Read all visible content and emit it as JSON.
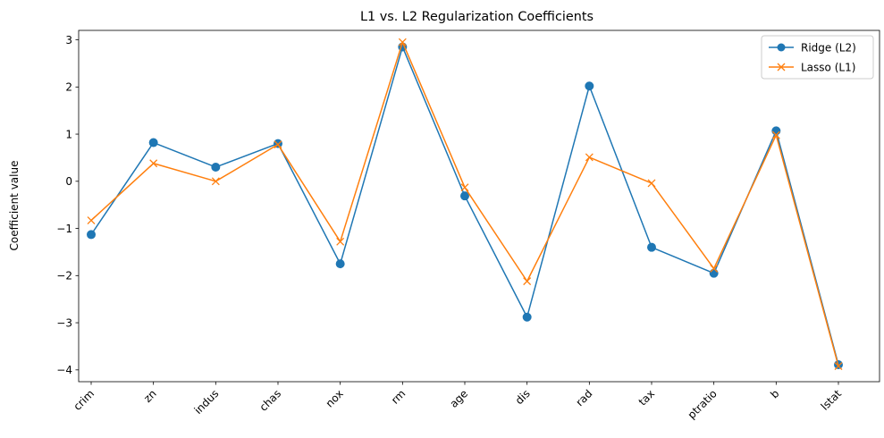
{
  "chart_data": {
    "type": "line",
    "title": "L1 vs. L2 Regularization Coefficients",
    "xlabel": "",
    "ylabel": "Coefficient value",
    "categories": [
      "crim",
      "zn",
      "indus",
      "chas",
      "nox",
      "rm",
      "age",
      "dis",
      "rad",
      "tax",
      "ptratio",
      "b",
      "lstat"
    ],
    "yticks": [
      "−4",
      "−3",
      "−2",
      "−1",
      "0",
      "1",
      "2",
      "3"
    ],
    "ytick_values": [
      -4,
      -3,
      -2,
      -1,
      0,
      1,
      2,
      3
    ],
    "ylim": [
      -4.25,
      3.2
    ],
    "grid": false,
    "legend_position": "top-right",
    "series": [
      {
        "name": "Ridge (L2)",
        "color": "#1f77b4",
        "marker": "circle",
        "values": [
          -1.13,
          0.82,
          0.3,
          0.8,
          -1.75,
          2.85,
          -0.31,
          -2.88,
          2.02,
          -1.4,
          -1.95,
          1.07,
          -3.89
        ]
      },
      {
        "name": "Lasso (L1)",
        "color": "#ff7f0e",
        "marker": "x",
        "values": [
          -0.83,
          0.38,
          0.0,
          0.78,
          -1.28,
          2.95,
          -0.13,
          -2.12,
          0.51,
          -0.04,
          -1.85,
          0.98,
          -3.92
        ]
      }
    ]
  }
}
